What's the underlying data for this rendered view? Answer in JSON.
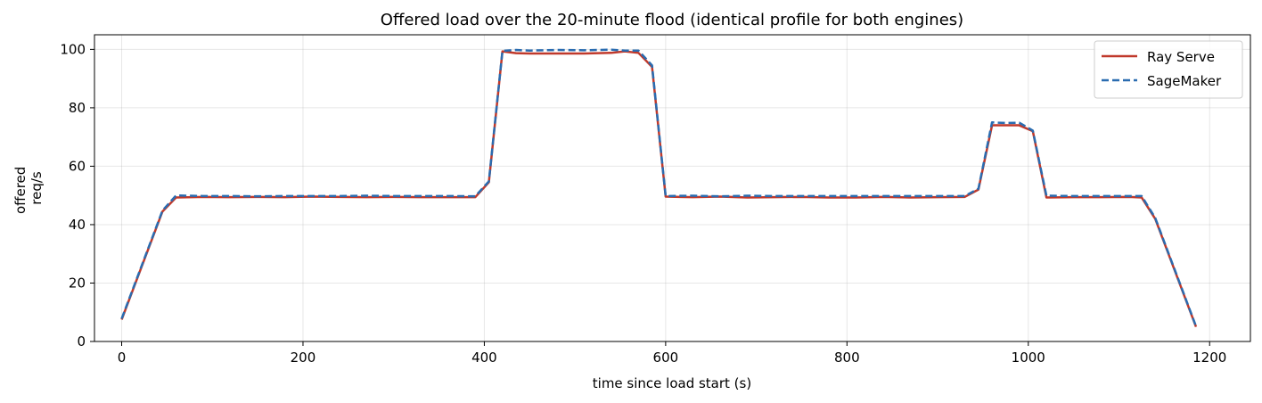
{
  "chart_data": {
    "type": "line",
    "title": "Offered load over the 20-minute flood (identical profile for both engines)",
    "xlabel": "time since load start (s)",
    "ylabel_lines": [
      "offered",
      "req/s"
    ],
    "xlim": [
      -30,
      1245
    ],
    "ylim": [
      0,
      105
    ],
    "xticks": [
      0,
      200,
      400,
      600,
      800,
      1000,
      1200
    ],
    "yticks": [
      0,
      20,
      40,
      60,
      80,
      100
    ],
    "grid": true,
    "legend_position": "top-right",
    "series": [
      {
        "name": "Ray Serve",
        "color": "#c0392b",
        "dash": "solid",
        "x": [
          0,
          45,
          60,
          90,
          120,
          150,
          180,
          210,
          240,
          270,
          300,
          330,
          360,
          390,
          405,
          420,
          435,
          450,
          480,
          510,
          540,
          555,
          570,
          585,
          600,
          630,
          660,
          690,
          720,
          750,
          780,
          810,
          840,
          870,
          900,
          930,
          945,
          960,
          975,
          990,
          1005,
          1020,
          1050,
          1080,
          1110,
          1125,
          1140,
          1185
        ],
        "values": [
          7.5,
          44.5,
          49.3,
          49.5,
          49.4,
          49.5,
          49.4,
          49.6,
          49.5,
          49.4,
          49.5,
          49.4,
          49.4,
          49.4,
          54.5,
          99.3,
          98.7,
          98.6,
          98.6,
          98.6,
          98.8,
          99.3,
          98.8,
          94.0,
          49.6,
          49.4,
          49.6,
          49.3,
          49.4,
          49.5,
          49.3,
          49.3,
          49.5,
          49.3,
          49.4,
          49.5,
          52.0,
          74.0,
          74.0,
          74.0,
          72.0,
          49.3,
          49.4,
          49.4,
          49.5,
          49.3,
          42.0,
          5.0
        ]
      },
      {
        "name": "SageMaker",
        "color": "#2a6cb0",
        "dash": "dashed",
        "x": [
          0,
          45,
          60,
          90,
          120,
          150,
          180,
          210,
          240,
          270,
          300,
          330,
          360,
          390,
          405,
          420,
          435,
          450,
          480,
          510,
          540,
          555,
          570,
          585,
          600,
          630,
          660,
          690,
          720,
          750,
          780,
          810,
          840,
          870,
          900,
          930,
          945,
          960,
          975,
          990,
          1005,
          1020,
          1050,
          1080,
          1110,
          1125,
          1140,
          1185
        ],
        "values": [
          7.8,
          44.8,
          50.0,
          49.8,
          49.8,
          49.7,
          49.8,
          49.8,
          49.8,
          49.9,
          49.8,
          49.8,
          49.8,
          49.7,
          54.8,
          99.5,
          99.8,
          99.6,
          99.8,
          99.7,
          99.9,
          99.6,
          99.6,
          94.5,
          49.8,
          49.9,
          49.7,
          49.9,
          49.8,
          49.8,
          49.8,
          49.8,
          49.8,
          49.8,
          49.8,
          49.8,
          52.3,
          75.0,
          74.8,
          74.9,
          72.2,
          49.9,
          49.8,
          49.8,
          49.8,
          49.8,
          42.3,
          5.2
        ]
      }
    ]
  }
}
